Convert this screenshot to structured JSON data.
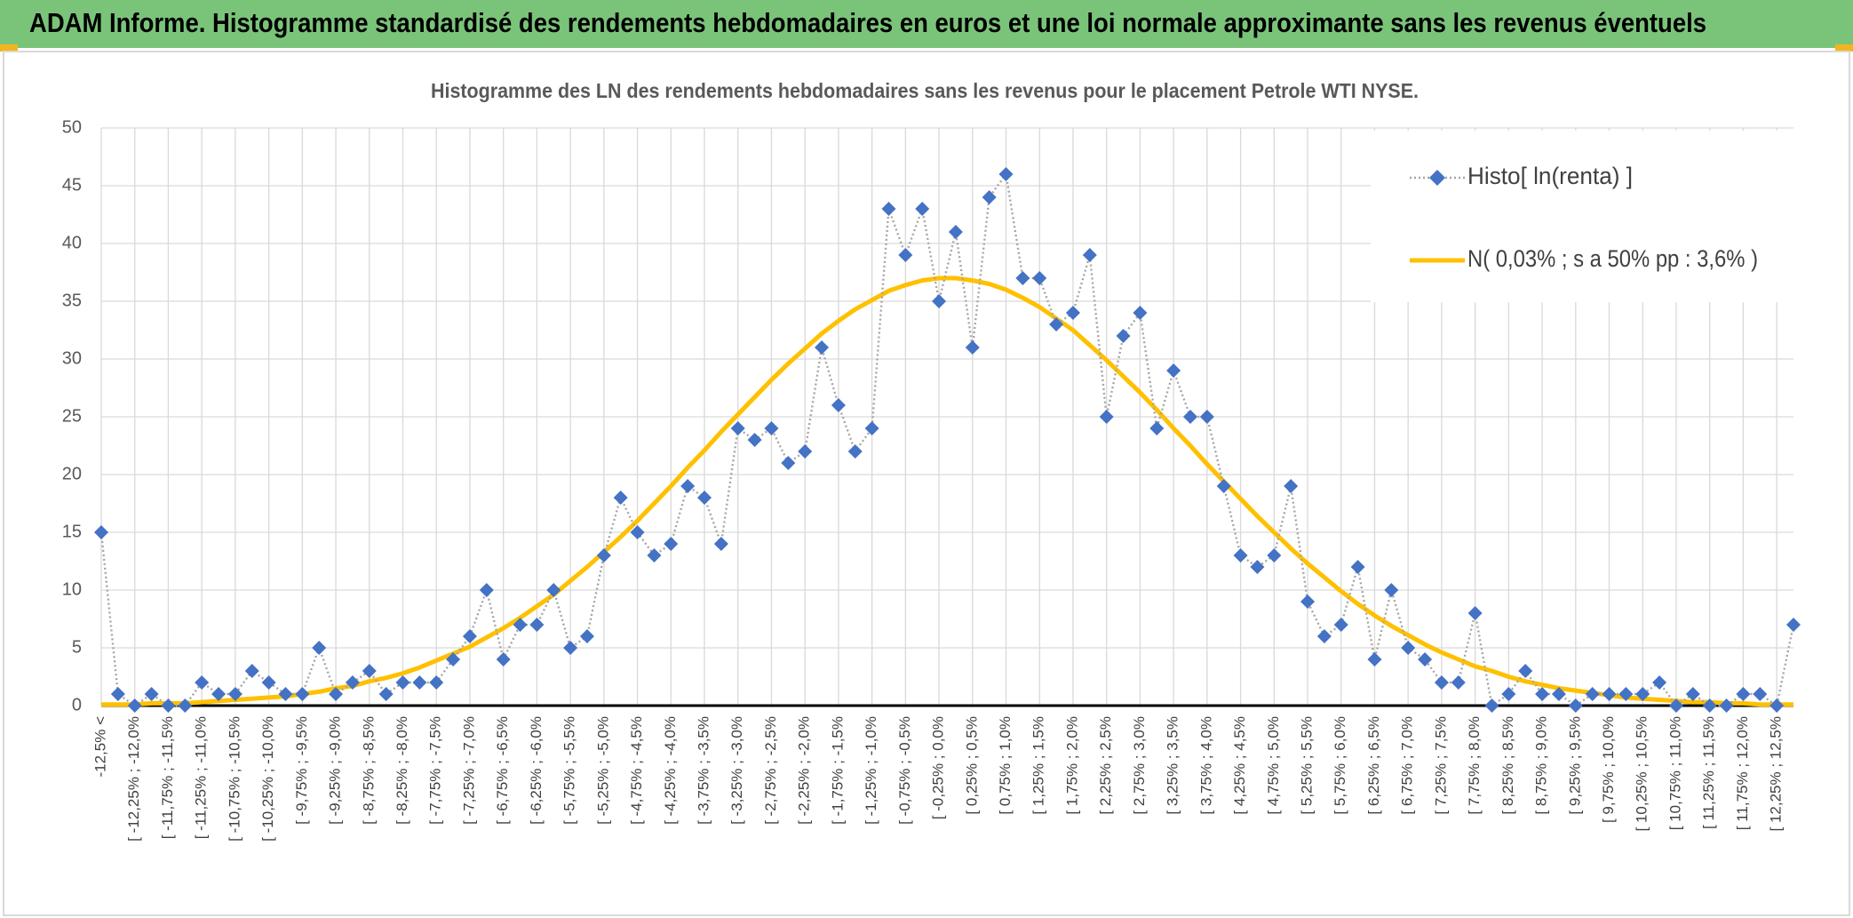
{
  "header": {
    "title": "ADAM Informe. Histogramme standardisé des rendements hebdomadaires en euros et une loi normale approximante sans les revenus éventuels"
  },
  "chart_data": {
    "type": "line",
    "title": "Histogramme des LN des rendements hebdomadaires sans les revenus pour le placement Petrole WTI NYSE.",
    "categories": [
      "-12,5% <",
      null,
      "[ -12,25% ; -12,0%",
      null,
      "[ -11,75% ; -11,5%",
      null,
      "[ -11,25% ; -11,0%",
      null,
      "[ -10,75% ; -10,5%",
      null,
      "[ -10,25% ; -10,0%",
      null,
      "[ -9,75% ; -9,5%",
      null,
      "[ -9,25% ; -9,0%",
      null,
      "[ -8,75% ; -8,5%",
      null,
      "[ -8,25% ; -8,0%",
      null,
      "[ -7,75% ; -7,5%",
      null,
      "[ -7,25% ; -7,0%",
      null,
      "[ -6,75% ; -6,5%",
      null,
      "[ -6,25% ; -6,0%",
      null,
      "[ -5,75% ; -5,5%",
      null,
      "[ -5,25% ; -5,0%",
      null,
      "[ -4,75% ; -4,5%",
      null,
      "[ -4,25% ; -4,0%",
      null,
      "[ -3,75% ; -3,5%",
      null,
      "[ -3,25% ; -3,0%",
      null,
      "[ -2,75% ; -2,5%",
      null,
      "[ -2,25% ; -2,0%",
      null,
      "[ -1,75% ; -1,5%",
      null,
      "[ -1,25% ; -1,0%",
      null,
      "[ -0,75% ; -0,5%",
      null,
      "[ -0,25% ; 0,0%",
      null,
      "[ 0,25% ; 0,5%",
      null,
      "[ 0,75% ; 1,0%",
      null,
      "[ 1,25% ; 1,5%",
      null,
      "[ 1,75% ; 2,0%",
      null,
      "[ 2,25% ; 2,5%",
      null,
      "[ 2,75% ; 3,0%",
      null,
      "[ 3,25% ; 3,5%",
      null,
      "[ 3,75% ; 4,0%",
      null,
      "[ 4,25% ; 4,5%",
      null,
      "[ 4,75% ; 5,0%",
      null,
      "[ 5,25% ; 5,5%",
      null,
      "[ 5,75% ; 6,0%",
      null,
      "[ 6,25% ; 6,5%",
      null,
      "[ 6,75% ; 7,0%",
      null,
      "[ 7,25% ; 7,5%",
      null,
      "[ 7,75% ; 8,0%",
      null,
      "[ 8,25% ; 8,5%",
      null,
      "[ 8,75% ; 9,0%",
      null,
      "[ 9,25% ; 9,5%",
      null,
      "[ 9,75% ; 10,0%",
      null,
      "[ 10,25% ; 10,5%",
      null,
      "[ 10,75% ; 11,0%",
      null,
      "[ 11,25% ; 11,5%",
      null,
      "[ 11,75% ; 12,0%",
      null,
      "[ 12,25% ; 12,5%",
      null
    ],
    "series": [
      {
        "name": "Histo[ ln(renta) ]",
        "color": "#4472c4",
        "line_color": "#a5a5a5",
        "line_style": "dotted",
        "marker": "diamond",
        "values": [
          15,
          1,
          0,
          1,
          0,
          0,
          2,
          1,
          1,
          3,
          2,
          1,
          1,
          5,
          1,
          2,
          3,
          1,
          2,
          2,
          2,
          4,
          6,
          10,
          4,
          7,
          7,
          10,
          5,
          6,
          13,
          18,
          15,
          13,
          14,
          19,
          18,
          14,
          24,
          23,
          24,
          21,
          22,
          31,
          26,
          22,
          24,
          43,
          39,
          43,
          35,
          41,
          31,
          44,
          46,
          37,
          37,
          33,
          34,
          39,
          25,
          32,
          34,
          24,
          29,
          25,
          25,
          19,
          13,
          12,
          13,
          19,
          9,
          6,
          7,
          12,
          4,
          10,
          5,
          4,
          2,
          2,
          8,
          0,
          1,
          3,
          1,
          1,
          0,
          1,
          1,
          1,
          1,
          2,
          0,
          1,
          0,
          0,
          1,
          1,
          0,
          7
        ]
      },
      {
        "name": "N( 0,03% ; s a 50% pp : 3,6% )",
        "color": "#ffc000",
        "line_style": "solid",
        "marker": "none",
        "values": [
          0.1,
          0.1,
          0.1,
          0.2,
          0.2,
          0.2,
          0.3,
          0.4,
          0.5,
          0.6,
          0.7,
          0.8,
          1.0,
          1.2,
          1.5,
          1.7,
          2.1,
          2.4,
          2.8,
          3.3,
          3.9,
          4.5,
          5.1,
          5.9,
          6.7,
          7.6,
          8.6,
          9.6,
          10.8,
          12.0,
          13.3,
          14.6,
          16.0,
          17.5,
          19.0,
          20.6,
          22.1,
          23.7,
          25.2,
          26.7,
          28.2,
          29.6,
          30.9,
          32.2,
          33.3,
          34.3,
          35.1,
          35.9,
          36.4,
          36.8,
          37.0,
          37.0,
          36.8,
          36.5,
          36.0,
          35.3,
          34.5,
          33.5,
          32.5,
          31.2,
          29.9,
          28.5,
          27.1,
          25.6,
          24.0,
          22.5,
          20.9,
          19.4,
          17.9,
          16.4,
          15.0,
          13.6,
          12.3,
          11.1,
          9.9,
          8.8,
          7.8,
          6.9,
          6.1,
          5.3,
          4.6,
          4.0,
          3.4,
          3.0,
          2.5,
          2.1,
          1.8,
          1.5,
          1.3,
          1.1,
          0.9,
          0.7,
          0.6,
          0.5,
          0.4,
          0.3,
          0.3,
          0.2,
          0.2,
          0.1,
          0.1,
          0.1
        ]
      }
    ],
    "ylim": [
      0,
      50
    ],
    "yticks": [
      0,
      5,
      10,
      15,
      20,
      25,
      30,
      35,
      40,
      45,
      50
    ],
    "grid": true,
    "legend": "upper right"
  }
}
